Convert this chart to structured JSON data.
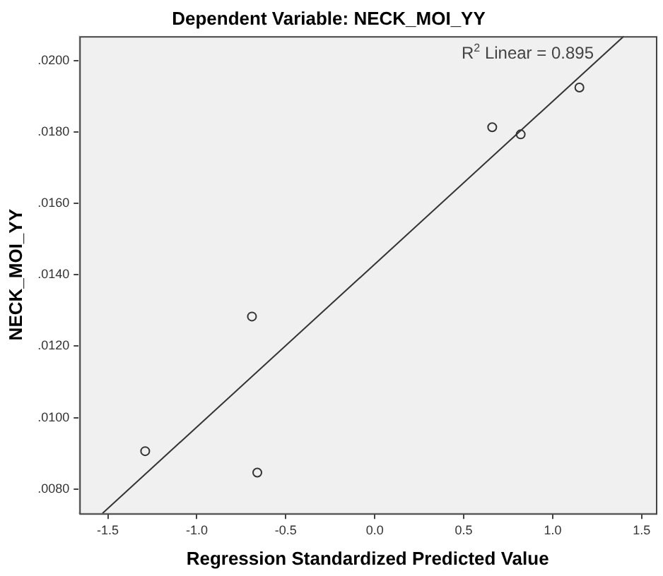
{
  "chart_data": {
    "type": "scatter",
    "title": "Dependent Variable: NECK_MOI_YY",
    "xlabel": "Regression Standardized Predicted Value",
    "ylabel": "NECK_MOI_YY",
    "annotations": [
      "R$^{2}$ Linear = 0.895"
    ],
    "series": [
      {
        "color": "#333333",
        "marker": "circle",
        "x": [
          0.66,
          0.82,
          1.15,
          -0.69,
          -1.29,
          -0.66
        ],
        "values": [
          0.01813,
          0.01793,
          0.01924,
          0.01283,
          0.00906,
          0.00846
        ]
      },
      {
        "type": "line",
        "color": "#333333",
        "marker": "none",
        "line_style": "solid",
        "x": [
          -1.53,
          1.4
        ],
        "values": [
          0.00732,
          0.02068
        ]
      }
    ],
    "xlim": [
      -1.66,
      1.58
    ],
    "ylim": [
      0.00732,
      0.02068
    ],
    "xticks": [
      {
        "value": -1.5,
        "label": "-1.5"
      },
      {
        "value": -1.0,
        "label": "-1.0"
      },
      {
        "value": -0.5,
        "label": "-0.5"
      },
      {
        "value": 0,
        "label": "0.0"
      },
      {
        "value": 0.5,
        "label": "0.5"
      },
      {
        "value": 1.0,
        "label": "1.0"
      },
      {
        "value": 1.5,
        "label": "1.5"
      }
    ],
    "yticks": [
      {
        "value": 0.008,
        "label": ".0080"
      },
      {
        "value": 0.01,
        "label": ".0100"
      },
      {
        "value": 0.012,
        "label": ".0120"
      },
      {
        "value": 0.014,
        "label": ".0140"
      },
      {
        "value": 0.016,
        "label": ".0160"
      },
      {
        "value": 0.018,
        "label": ".0180"
      },
      {
        "value": 0.02,
        "label": ".0200"
      }
    ],
    "grid": false,
    "legend": false
  }
}
